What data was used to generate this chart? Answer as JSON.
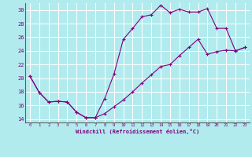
{
  "title": "",
  "xlabel": "Windchill (Refroidissement éolien,°C)",
  "ylabel": "",
  "background_color": "#b2ebee",
  "line_color": "#800080",
  "grid_color": "#ffffff",
  "xlim": [
    -0.5,
    23.5
  ],
  "ylim": [
    13.5,
    31
  ],
  "yticks": [
    14,
    16,
    18,
    20,
    22,
    24,
    26,
    28,
    30
  ],
  "xticks": [
    0,
    1,
    2,
    3,
    4,
    5,
    6,
    7,
    8,
    9,
    10,
    11,
    12,
    13,
    14,
    15,
    16,
    17,
    18,
    19,
    20,
    21,
    22,
    23
  ],
  "line1_x": [
    0,
    1,
    2,
    3,
    4,
    5,
    6,
    7,
    8,
    9,
    10,
    11,
    12,
    13,
    14,
    15,
    16,
    17,
    18,
    19,
    20,
    21,
    22,
    23
  ],
  "line1_y": [
    20.3,
    17.9,
    16.5,
    16.6,
    16.5,
    15.0,
    14.2,
    14.2,
    17.0,
    20.6,
    25.7,
    27.3,
    29.0,
    29.3,
    30.7,
    29.6,
    30.1,
    29.7,
    29.7,
    30.2,
    27.3,
    27.3,
    24.0,
    24.5
  ],
  "line2_x": [
    0,
    1,
    2,
    3,
    4,
    5,
    6,
    7,
    8,
    9,
    10,
    11,
    12,
    13,
    14,
    15,
    16,
    17,
    18,
    19,
    20,
    21,
    22,
    23
  ],
  "line2_y": [
    20.3,
    17.9,
    16.5,
    16.6,
    16.5,
    15.0,
    14.2,
    14.2,
    14.8,
    15.8,
    16.8,
    18.0,
    19.3,
    20.5,
    21.7,
    22.0,
    23.3,
    24.5,
    25.7,
    23.5,
    23.9,
    24.1,
    24.0,
    24.5
  ]
}
